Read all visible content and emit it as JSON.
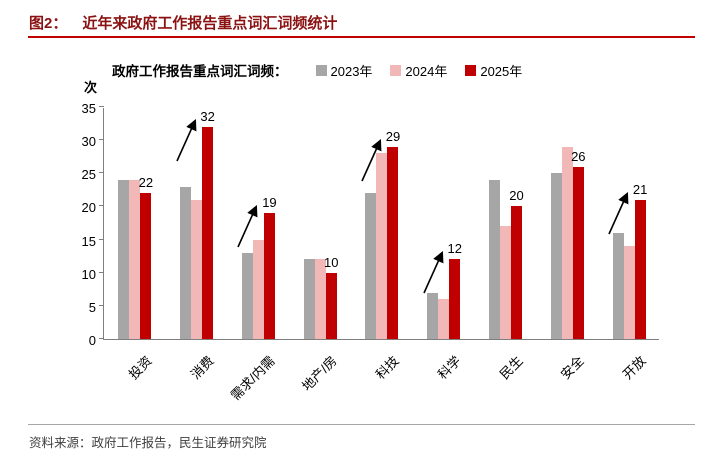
{
  "header": {
    "figure_label": "图2：",
    "title": "近年来政府工作报告重点词汇词频统计"
  },
  "footer": {
    "source": "资料来源：政府工作报告，民生证券研究院"
  },
  "colors": {
    "accent_red": "#c00000",
    "series_2023": "#a6a6a6",
    "series_2024": "#f2b8b8",
    "series_2025": "#c00000",
    "axis": "#7f7f7f",
    "arrow": "#000000"
  },
  "chart_data": {
    "type": "bar",
    "title": "政府工作报告重点词汇词频",
    "legend_title": "政府工作报告重点词汇词频：",
    "ylabel": "次",
    "xlabel": "",
    "ylim": [
      0,
      35
    ],
    "ytick_step": 5,
    "grid": false,
    "legend_position": "top",
    "categories": [
      "投资",
      "消费",
      "需求/内需",
      "地产/房",
      "科技",
      "科学",
      "民生",
      "安全",
      "开放"
    ],
    "series": [
      {
        "name": "2023年",
        "color": "#a6a6a6",
        "values": [
          24,
          23,
          13,
          12,
          22,
          7,
          24,
          25,
          16
        ]
      },
      {
        "name": "2024年",
        "color": "#f2b8b8",
        "values": [
          24,
          21,
          15,
          12,
          28,
          6,
          17,
          29,
          14
        ]
      },
      {
        "name": "2025年",
        "color": "#c00000",
        "values": [
          22,
          32,
          19,
          10,
          29,
          12,
          20,
          26,
          21
        ]
      }
    ],
    "value_labels": [
      22,
      32,
      19,
      10,
      29,
      12,
      20,
      26,
      21
    ],
    "arrow_flags": [
      false,
      true,
      true,
      false,
      true,
      true,
      false,
      false,
      true
    ],
    "annotations": "black up-right arrows mark notable 2025 increases"
  }
}
